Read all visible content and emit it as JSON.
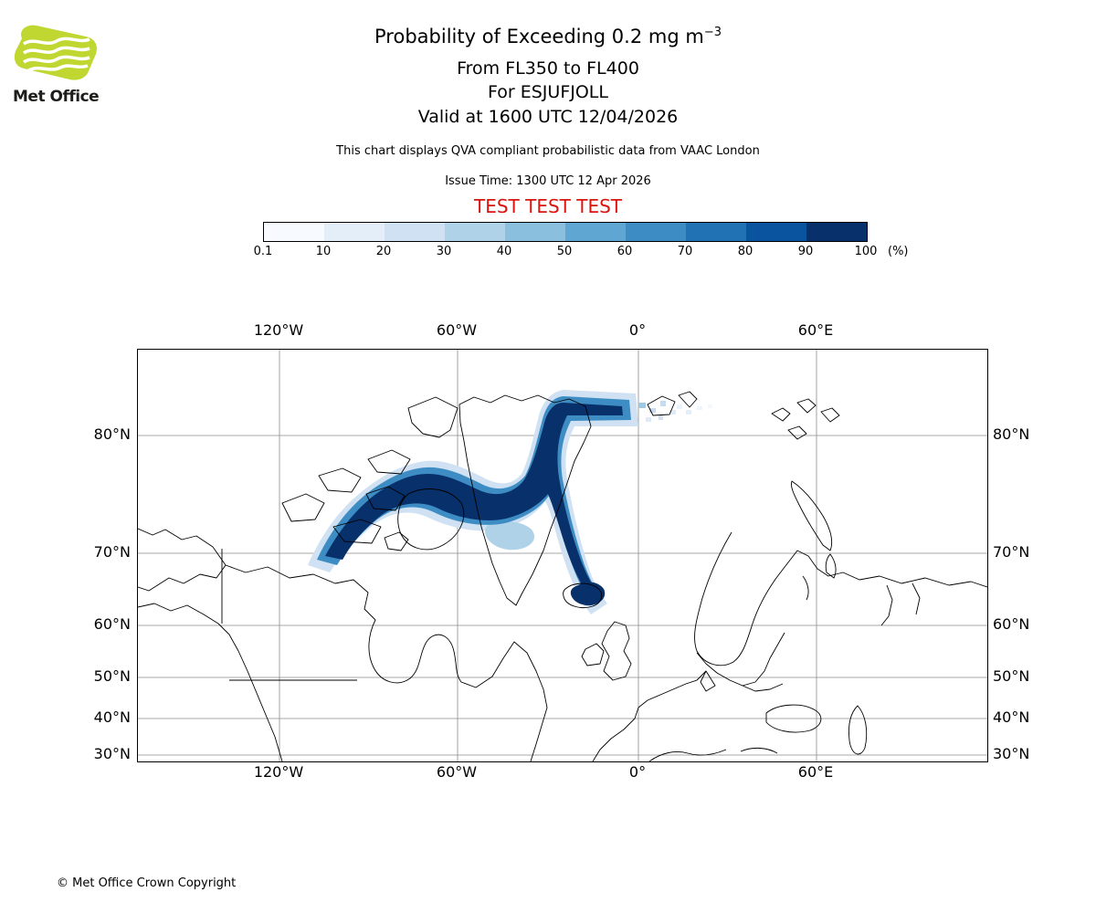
{
  "header": {
    "logo_text": "Met Office",
    "title_main": "Probability of Exceeding 0.2 mg m",
    "title_sup": "−3",
    "subtitle1": "From FL350 to FL400",
    "subtitle2": "For ESJUFJOLL",
    "subtitle3": "Valid at 1600 UTC 12/04/2026",
    "description": "This chart displays QVA compliant probabilistic data from VAAC London",
    "issue_time": "Issue Time: 1300 UTC 12 Apr 2026",
    "test_banner": "TEST TEST TEST",
    "test_color": "#d9140e"
  },
  "colorbar": {
    "ticks": [
      "0.1",
      "10",
      "20",
      "30",
      "40",
      "50",
      "60",
      "70",
      "80",
      "90",
      "100"
    ],
    "unit": "(%)",
    "colors": [
      "#f7fbff",
      "#e3eef9",
      "#cfe1f2",
      "#b0d2e8",
      "#8abfdd",
      "#60a6d2",
      "#3d8dc4",
      "#2171b5",
      "#0a539e",
      "#08306b"
    ]
  },
  "map": {
    "top_labels": [
      "120°W",
      "60°W",
      "0°",
      "60°E"
    ],
    "bottom_labels": [
      "120°W",
      "60°W",
      "0°",
      "60°E"
    ],
    "left_labels": [
      "80°N",
      "70°N",
      "60°N",
      "50°N",
      "40°N",
      "30°N"
    ],
    "right_labels": [
      "80°N",
      "70°N",
      "60°N",
      "50°N",
      "40°N",
      "30°N"
    ]
  },
  "plume": {
    "light_color": "#cfe1f2",
    "fringe_color": "#b0d2e8",
    "mid_color": "#3d8dc4",
    "core_color": "#08306b",
    "speckle_colors": [
      "#9ecae1",
      "#c6dbef",
      "#c6dbef",
      "#deebf7",
      "#deebf7",
      "#eaf3fb",
      "#cfe1f2",
      "#e3eef9",
      "#eef6fc",
      "#f2f8fd"
    ]
  },
  "logo": {
    "green": "#bfd730"
  },
  "footer": {
    "copyright": "© Met Office Crown Copyright"
  }
}
